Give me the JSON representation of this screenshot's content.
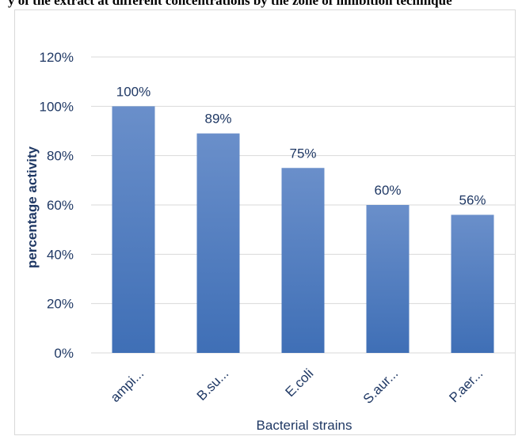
{
  "page_caption": "y of the extract at different concentrations by the zone of inhibition technique",
  "colors": {
    "bar_top": "#6a8fca",
    "bar_bottom": "#3f6fb6",
    "axis_text": "#404040",
    "label_text": "#1f3864",
    "gridline": "#d9d9d9"
  },
  "chart_data": {
    "type": "bar",
    "title": "",
    "xlabel": "Bacterial strains",
    "ylabel": "percentage activity",
    "categories": [
      "ampi...",
      "B.su...",
      "E.coli",
      "S.aur...",
      "P.aer..."
    ],
    "values": [
      100,
      89,
      75,
      60,
      56
    ],
    "data_labels": [
      "100%",
      "89%",
      "75%",
      "60%",
      "56%"
    ],
    "ylim": [
      0,
      120
    ],
    "yticks": [
      0,
      20,
      40,
      60,
      80,
      100,
      120
    ],
    "ytick_labels": [
      "0%",
      "20%",
      "40%",
      "60%",
      "80%",
      "100%",
      "120%"
    ],
    "grid": true,
    "legend": "none"
  }
}
